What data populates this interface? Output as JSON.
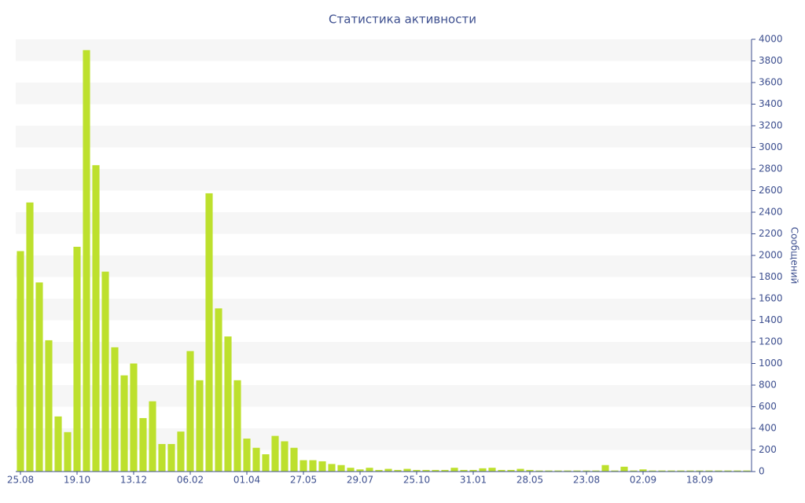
{
  "chart_data": {
    "type": "bar",
    "title": "Статистика активности",
    "y_label": "Сообщений",
    "categories": [
      "25.08",
      null,
      null,
      null,
      null,
      null,
      "19.10",
      null,
      null,
      null,
      null,
      null,
      "13.12",
      null,
      null,
      null,
      null,
      null,
      "06.02",
      null,
      null,
      null,
      null,
      null,
      "01.04",
      null,
      null,
      null,
      null,
      null,
      "27.05",
      null,
      null,
      null,
      null,
      null,
      "29.07",
      null,
      null,
      null,
      null,
      null,
      "25.10",
      null,
      null,
      null,
      null,
      null,
      "31.01",
      null,
      null,
      null,
      null,
      null,
      "28.05",
      null,
      null,
      null,
      null,
      null,
      "23.08",
      null,
      null,
      null,
      null,
      null,
      "02.09",
      null,
      null,
      null,
      null,
      null,
      "18.09",
      null,
      null,
      null,
      null,
      null
    ],
    "values": [
      2040,
      2490,
      1750,
      1215,
      510,
      365,
      2080,
      3900,
      2835,
      1850,
      1150,
      890,
      1000,
      495,
      650,
      255,
      255,
      370,
      1115,
      845,
      2575,
      1510,
      1250,
      845,
      305,
      220,
      160,
      330,
      280,
      220,
      105,
      105,
      95,
      70,
      60,
      35,
      20,
      35,
      15,
      25,
      15,
      25,
      15,
      15,
      15,
      15,
      35,
      15,
      15,
      30,
      35,
      15,
      15,
      25,
      15,
      10,
      10,
      10,
      10,
      10,
      10,
      10,
      60,
      10,
      45,
      10,
      20,
      10,
      10,
      10,
      10,
      10,
      10,
      10,
      10,
      10,
      10,
      10
    ],
    "color": "#bde02d",
    "ylim": [
      0,
      4000
    ],
    "yticks": [
      0,
      200,
      400,
      600,
      800,
      1000,
      1200,
      1400,
      1600,
      1800,
      2000,
      2200,
      2400,
      2600,
      2800,
      3000,
      3200,
      3400,
      3600,
      3800,
      4000
    ],
    "grid": true
  }
}
